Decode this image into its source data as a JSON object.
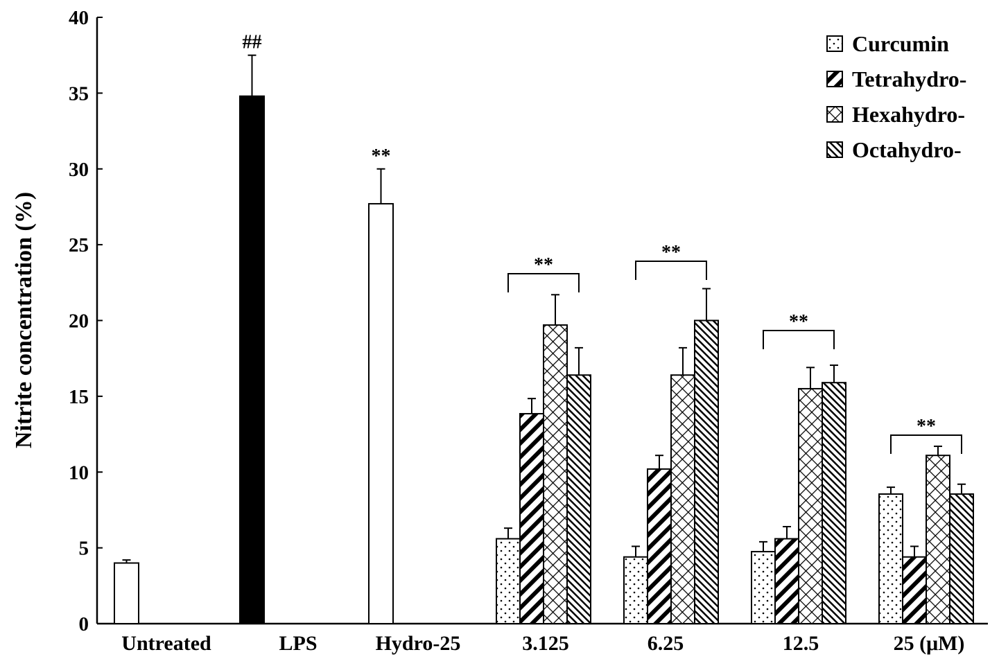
{
  "chart_data": {
    "type": "bar",
    "title": "",
    "xlabel": "",
    "ylabel": "Nitrite concentration (%)",
    "ylim": [
      0,
      40
    ],
    "yticks": [
      0,
      5,
      10,
      15,
      20,
      25,
      30,
      35,
      40
    ],
    "grid": false,
    "legend_position": "top-right",
    "single_bars": [
      {
        "category": "Untreated",
        "value": 4.0,
        "error": 0.2,
        "fill": "white",
        "annotation": ""
      },
      {
        "category": "LPS",
        "value": 34.8,
        "error": 2.7,
        "fill": "black",
        "annotation": "##"
      },
      {
        "category": "Hydro-25",
        "value": 27.7,
        "error": 2.3,
        "fill": "white",
        "annotation": "**"
      }
    ],
    "group_categories": [
      "3.125",
      "6.25",
      "12.5",
      "25 (μM)"
    ],
    "group_annotation": "**",
    "series": [
      {
        "name": "Curcumin",
        "pattern": "dots",
        "values": [
          5.6,
          4.4,
          4.75,
          8.55
        ],
        "errors": [
          0.7,
          0.7,
          0.65,
          0.45
        ]
      },
      {
        "name": "Tetrahydro-",
        "pattern": "thick-diagonal",
        "values": [
          13.85,
          10.2,
          5.6,
          4.4
        ],
        "errors": [
          1.0,
          0.9,
          0.8,
          0.7
        ]
      },
      {
        "name": "Hexahydro-",
        "pattern": "crosshatch",
        "values": [
          19.7,
          16.4,
          15.5,
          11.1
        ],
        "errors": [
          2.0,
          1.8,
          1.4,
          0.6
        ]
      },
      {
        "name": "Octahydro-",
        "pattern": "thin-diagonal",
        "values": [
          16.4,
          20.0,
          15.9,
          8.55
        ],
        "errors": [
          1.8,
          2.1,
          1.15,
          0.65
        ]
      }
    ]
  }
}
